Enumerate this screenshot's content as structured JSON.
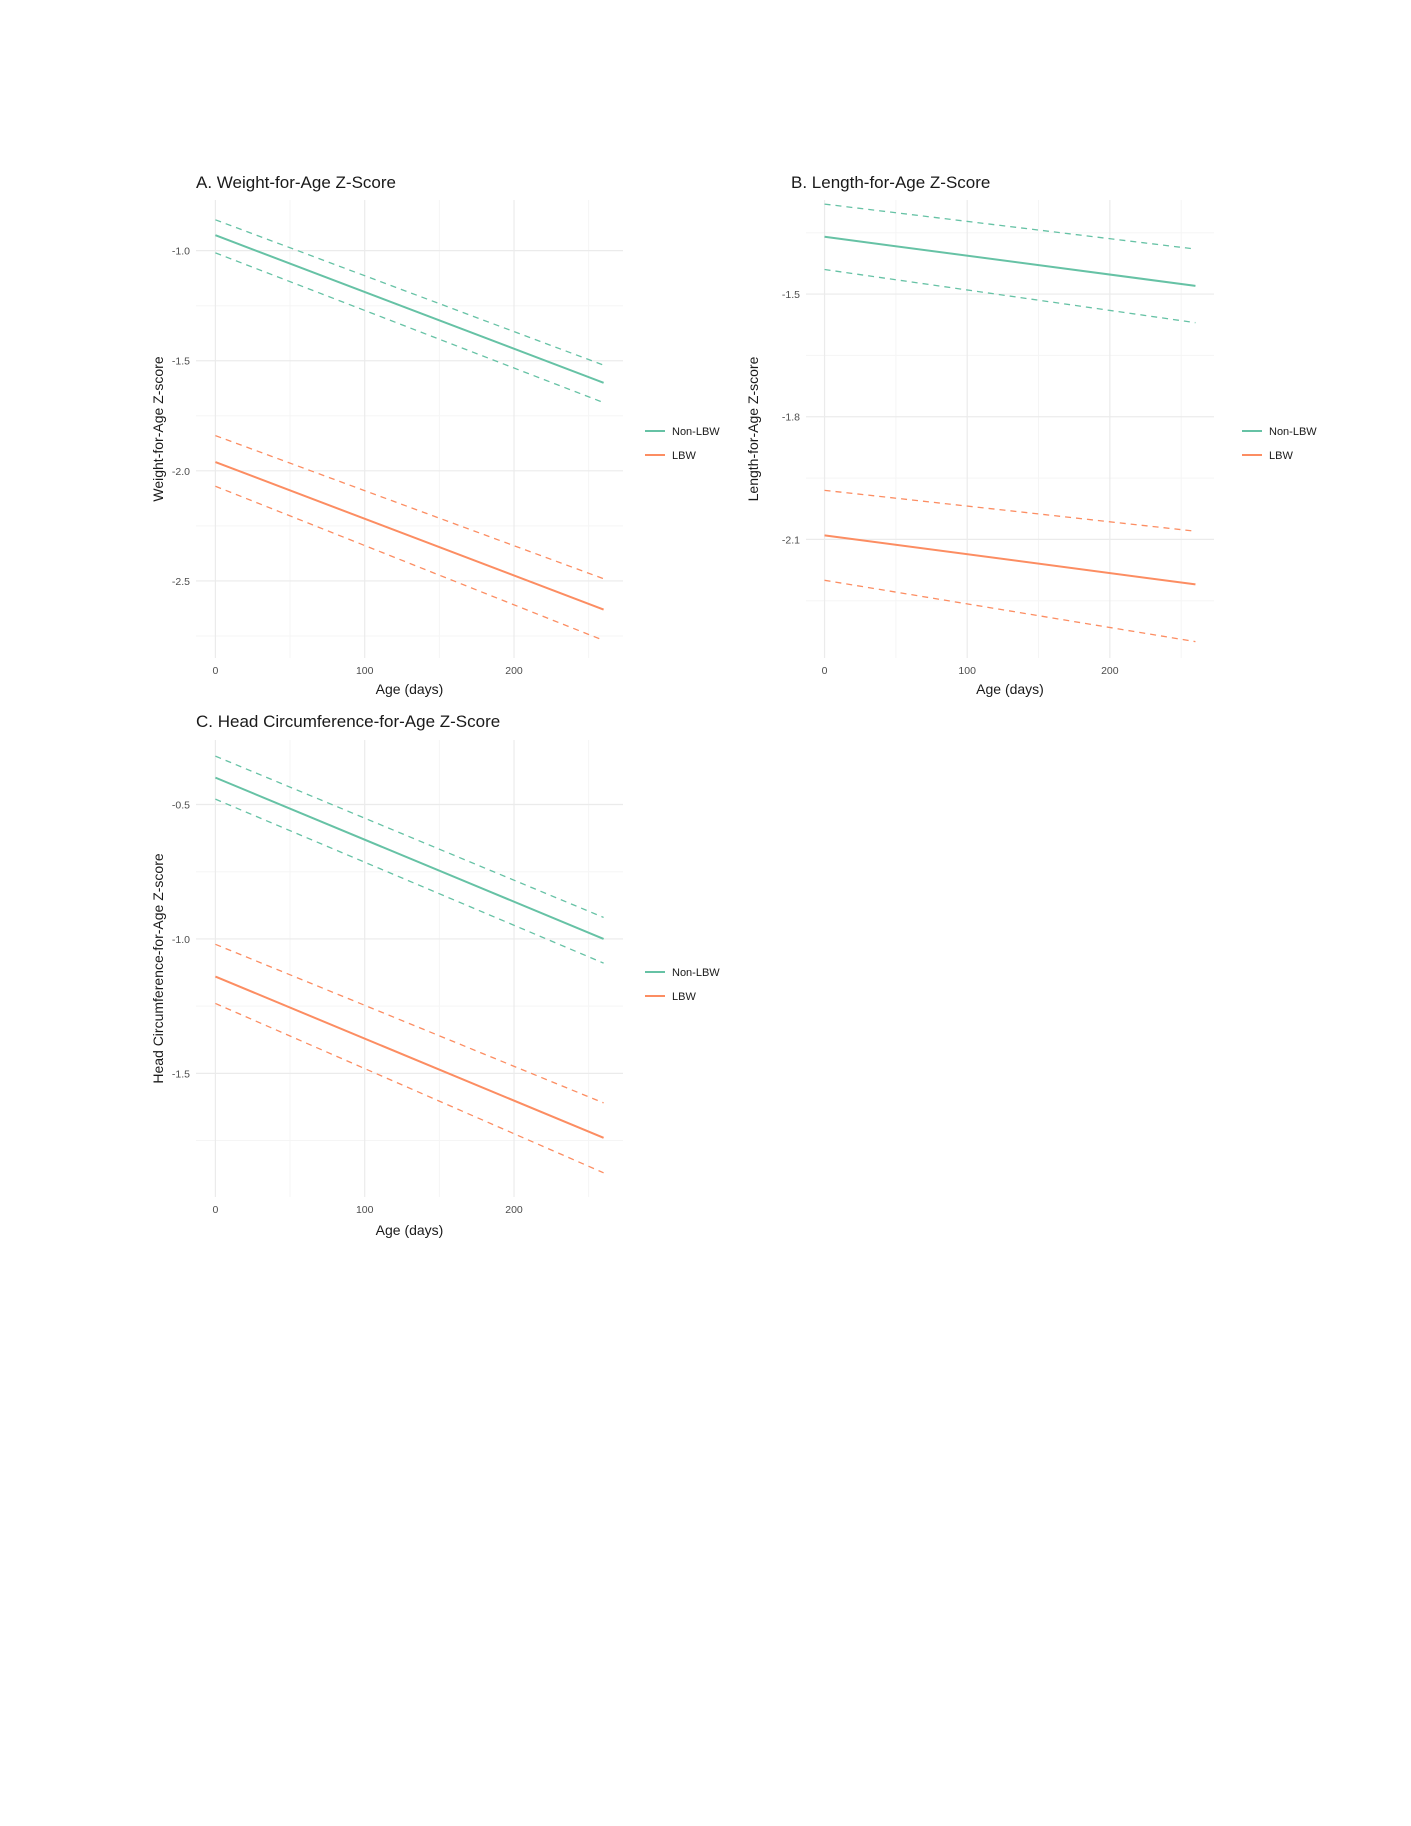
{
  "colors": {
    "Non-LBW": "#66c2a5",
    "LBW": "#fc8d62",
    "grid_major": "#ebebeb",
    "grid_minor": "#f5f5f5"
  },
  "chart_data": [
    {
      "type": "line",
      "title": "A. Weight-for-Age Z-Score",
      "xlabel": "Age (days)",
      "ylabel": "Weight-for-Age Z-score",
      "xlim": [
        -13,
        273
      ],
      "ylim": [
        -2.85,
        -0.77
      ],
      "xticks": [
        0,
        100,
        200
      ],
      "xtick_labels": [
        "0",
        "100",
        "200"
      ],
      "yticks": [
        -1.0,
        -1.5,
        -2.0,
        -2.5
      ],
      "ytick_labels": [
        "-1.0",
        "-1.5",
        "-2.0",
        "-2.5"
      ],
      "grid": true,
      "legend": [
        "Non-LBW",
        "LBW"
      ],
      "legend_position": "right",
      "series": [
        {
          "name": "Non-LBW",
          "linestyle": "solid",
          "x": [
            0,
            260
          ],
          "y": [
            -0.93,
            -1.6
          ]
        },
        {
          "name": "Non-LBW",
          "linestyle": "dashed",
          "x": [
            0,
            260
          ],
          "y": [
            -0.86,
            -1.52
          ]
        },
        {
          "name": "Non-LBW",
          "linestyle": "dashed",
          "x": [
            0,
            260
          ],
          "y": [
            -1.01,
            -1.69
          ]
        },
        {
          "name": "LBW",
          "linestyle": "solid",
          "x": [
            0,
            260
          ],
          "y": [
            -1.96,
            -2.63
          ]
        },
        {
          "name": "LBW",
          "linestyle": "dashed",
          "x": [
            0,
            260
          ],
          "y": [
            -1.84,
            -2.49
          ]
        },
        {
          "name": "LBW",
          "linestyle": "dashed",
          "x": [
            0,
            260
          ],
          "y": [
            -2.07,
            -2.77
          ]
        }
      ]
    },
    {
      "type": "line",
      "title": "B. Length-for-Age Z-Score",
      "xlabel": "Age (days)",
      "ylabel": "Length-for-Age Z-score",
      "xlim": [
        -13,
        273
      ],
      "ylim": [
        -2.39,
        -1.27
      ],
      "xticks": [
        0,
        100,
        200
      ],
      "xtick_labels": [
        "0",
        "100",
        "200"
      ],
      "yticks": [
        -1.5,
        -1.8,
        -2.1
      ],
      "ytick_labels": [
        "-1.5",
        "-1.8",
        "-2.1"
      ],
      "grid": true,
      "legend": [
        "Non-LBW",
        "LBW"
      ],
      "legend_position": "right",
      "series": [
        {
          "name": "Non-LBW",
          "linestyle": "solid",
          "x": [
            0,
            260
          ],
          "y": [
            -1.36,
            -1.48
          ]
        },
        {
          "name": "Non-LBW",
          "linestyle": "dashed",
          "x": [
            0,
            260
          ],
          "y": [
            -1.28,
            -1.39
          ]
        },
        {
          "name": "Non-LBW",
          "linestyle": "dashed",
          "x": [
            0,
            260
          ],
          "y": [
            -1.44,
            -1.57
          ]
        },
        {
          "name": "LBW",
          "linestyle": "solid",
          "x": [
            0,
            260
          ],
          "y": [
            -2.09,
            -2.21
          ]
        },
        {
          "name": "LBW",
          "linestyle": "dashed",
          "x": [
            0,
            260
          ],
          "y": [
            -1.98,
            -2.08
          ]
        },
        {
          "name": "LBW",
          "linestyle": "dashed",
          "x": [
            0,
            260
          ],
          "y": [
            -2.2,
            -2.35
          ]
        }
      ]
    },
    {
      "type": "line",
      "title": "C. Head Circumference-for-Age Z-Score",
      "xlabel": "Age (days)",
      "ylabel": "Head Circumference-for-Age Z-score",
      "xlim": [
        -13,
        273
      ],
      "ylim": [
        -1.96,
        -0.26
      ],
      "xticks": [
        0,
        100,
        200
      ],
      "xtick_labels": [
        "0",
        "100",
        "200"
      ],
      "yticks": [
        -0.5,
        -1.0,
        -1.5
      ],
      "ytick_labels": [
        "-0.5",
        "-1.0",
        "-1.5"
      ],
      "grid": true,
      "legend": [
        "Non-LBW",
        "LBW"
      ],
      "legend_position": "right",
      "series": [
        {
          "name": "Non-LBW",
          "linestyle": "solid",
          "x": [
            0,
            260
          ],
          "y": [
            -0.4,
            -1.0
          ]
        },
        {
          "name": "Non-LBW",
          "linestyle": "dashed",
          "x": [
            0,
            260
          ],
          "y": [
            -0.32,
            -0.92
          ]
        },
        {
          "name": "Non-LBW",
          "linestyle": "dashed",
          "x": [
            0,
            260
          ],
          "y": [
            -0.48,
            -1.09
          ]
        },
        {
          "name": "LBW",
          "linestyle": "solid",
          "x": [
            0,
            260
          ],
          "y": [
            -1.14,
            -1.74
          ]
        },
        {
          "name": "LBW",
          "linestyle": "dashed",
          "x": [
            0,
            260
          ],
          "y": [
            -1.02,
            -1.61
          ]
        },
        {
          "name": "LBW",
          "linestyle": "dashed",
          "x": [
            0,
            260
          ],
          "y": [
            -1.24,
            -1.87
          ]
        }
      ]
    }
  ]
}
